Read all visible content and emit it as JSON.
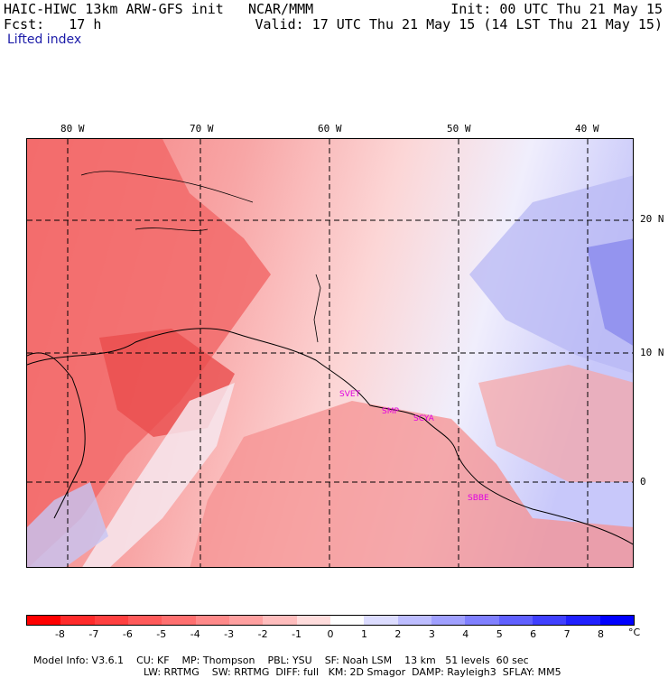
{
  "header": {
    "model_title": "HAIC-HIWC 13km ARW-GFS init",
    "org": "NCAR/MMM",
    "init": "Init: 00 UTC Thu 21 May 15",
    "fcst": "Fcst:   17 h",
    "valid": "Valid: 17 UTC Thu 21 May 15 (14 LST Thu 21 May 15)",
    "field": "Lifted index"
  },
  "map": {
    "lon_labels": [
      "80 W",
      "70 W",
      "60 W",
      "50 W",
      "40 W"
    ],
    "lat_labels": [
      "20 N",
      "10 N",
      "0"
    ],
    "city_labels": [
      "SVET",
      "SMP",
      "SCYA",
      "SBBE"
    ]
  },
  "colorbar": {
    "colors": [
      "#ff0000",
      "#ff2b2b",
      "#ff4040",
      "#ff5a5a",
      "#ff7070",
      "#ff8a8a",
      "#ffa0a0",
      "#ffbdbd",
      "#ffdcdc",
      "#ffffff",
      "#dcdcff",
      "#bdbdff",
      "#a0a0ff",
      "#8080ff",
      "#6060ff",
      "#4040ff",
      "#2020ff",
      "#0000ff"
    ],
    "ticks": [
      "-8",
      "-7",
      "-6",
      "-5",
      "-4",
      "-3",
      "-2",
      "-1",
      "0",
      "1",
      "2",
      "3",
      "4",
      "5",
      "6",
      "7",
      "8"
    ],
    "unit": "°C"
  },
  "model_info": {
    "line1": [
      "Model Info: V3.6.1",
      "CU: KF",
      "MP: Thompson",
      "PBL: YSU",
      "SF: Noah LSM",
      "13 km",
      "51 levels",
      "60 sec"
    ],
    "line2": [
      "LW: RRTMG",
      "SW: RRTMG",
      "DIFF: full",
      "KM: 2D Smagor",
      "DAMP: Rayleigh3",
      "SFLAY: MM5"
    ]
  }
}
